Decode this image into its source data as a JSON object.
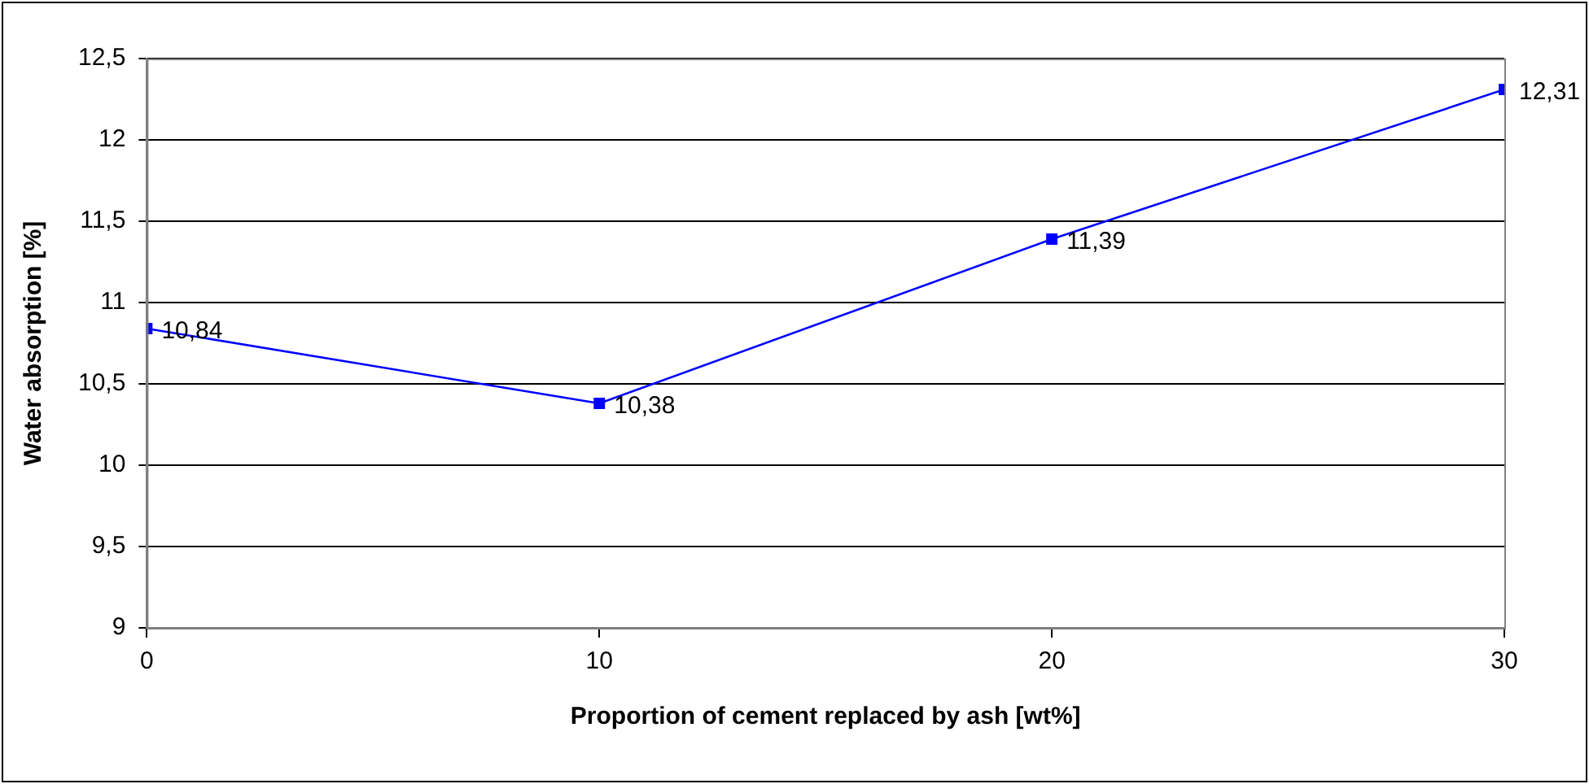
{
  "chart_data": {
    "type": "line",
    "xlabel": "Proportion of cement replaced by ash [wt%]",
    "ylabel": "Water absorption [%]",
    "x": [
      0,
      10,
      20,
      30
    ],
    "series": [
      {
        "color": "#0000ff",
        "values": [
          10.84,
          10.38,
          11.39,
          12.31
        ],
        "value_labels": [
          "10,84",
          "10,38",
          "11,39",
          "12,31"
        ]
      }
    ],
    "xlim": [
      0,
      30
    ],
    "xticks": [
      0,
      10,
      20,
      30
    ],
    "ylim": [
      9,
      12.5
    ],
    "yticks": [
      {
        "value": 9,
        "label": "9"
      },
      {
        "value": 9.5,
        "label": "9,5"
      },
      {
        "value": 10,
        "label": "10"
      },
      {
        "value": 10.5,
        "label": "10,5"
      },
      {
        "value": 11,
        "label": "11"
      },
      {
        "value": 11.5,
        "label": "11,5"
      },
      {
        "value": 12,
        "label": "12"
      },
      {
        "value": 12.5,
        "label": "12,5"
      }
    ],
    "grid": "y",
    "legend": false,
    "marker": "square",
    "line_style": "solid"
  }
}
